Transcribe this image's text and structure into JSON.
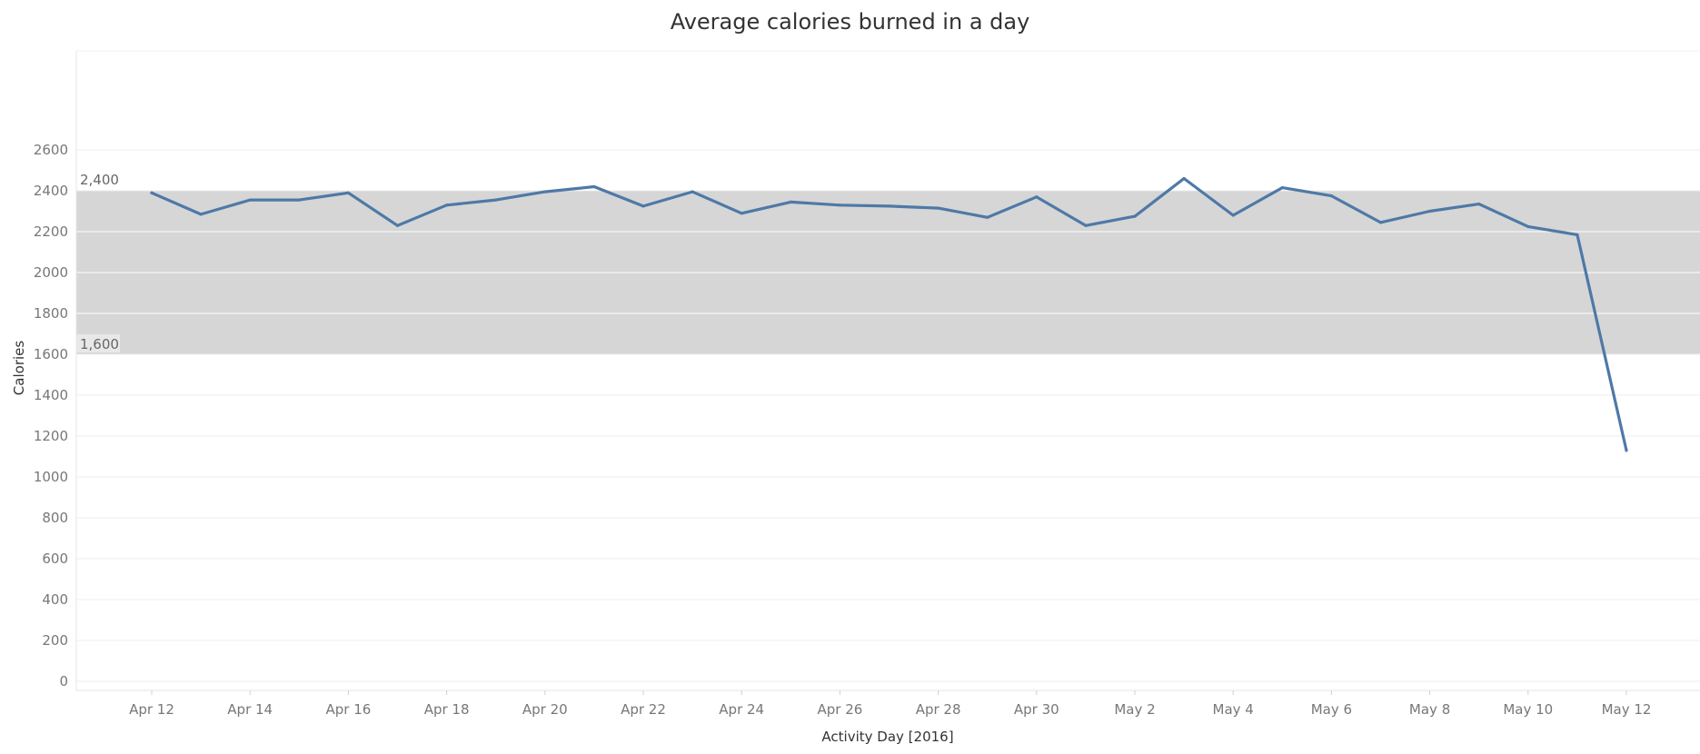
{
  "chart_data": {
    "type": "line",
    "title": "Average calories burned in a day",
    "xlabel": "Activity Day [2016]",
    "ylabel": "Calories",
    "ylim": [
      0,
      2600
    ],
    "yticks": [
      0,
      200,
      400,
      600,
      800,
      1000,
      1200,
      1400,
      1600,
      1800,
      2000,
      2200,
      2400,
      2600
    ],
    "x_tick_labels": [
      "Apr 12",
      "Apr 14",
      "Apr 16",
      "Apr 18",
      "Apr 20",
      "Apr 22",
      "Apr 24",
      "Apr 26",
      "Apr 28",
      "Apr 30",
      "May 2",
      "May 4",
      "May 6",
      "May 8",
      "May 10",
      "May 12"
    ],
    "x": [
      "Apr 12",
      "Apr 13",
      "Apr 14",
      "Apr 15",
      "Apr 16",
      "Apr 17",
      "Apr 18",
      "Apr 19",
      "Apr 20",
      "Apr 21",
      "Apr 22",
      "Apr 23",
      "Apr 24",
      "Apr 25",
      "Apr 26",
      "Apr 27",
      "Apr 28",
      "Apr 29",
      "Apr 30",
      "May 1",
      "May 2",
      "May 3",
      "May 4",
      "May 5",
      "May 6",
      "May 7",
      "May 8",
      "May 9",
      "May 10",
      "May 11",
      "May 12"
    ],
    "series": [
      {
        "values": [
          2390,
          2285,
          2355,
          2355,
          2390,
          2230,
          2330,
          2355,
          2395,
          2420,
          2325,
          2395,
          2290,
          2345,
          2330,
          2325,
          2315,
          2270,
          2370,
          2230,
          2275,
          2460,
          2280,
          2415,
          2375,
          2245,
          2300,
          2335,
          2225,
          2185,
          1130
        ],
        "color": "#4e79a7"
      }
    ],
    "reference_band": {
      "low": 1600,
      "high": 2400,
      "low_label": "1,600",
      "high_label": "2,400",
      "color": "#d6d6d6"
    },
    "grid": true
  }
}
